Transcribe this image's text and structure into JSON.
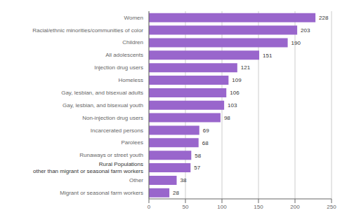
{
  "chart_data": {
    "type": "bar",
    "orientation": "horizontal",
    "categories": [
      "Migrant or seasonal farm workers",
      "Other",
      null,
      "Runaways or street youth",
      "Parolees",
      "Incarcerated persons",
      "Non-injection drug users",
      "Gay, lesbian, and bisexual youth",
      "Gay, lesbian, and bisexual adults",
      "Homeless",
      "Injection drug users",
      "All adolescents",
      "Children",
      "Racial/ethnic minorities/communities of color",
      "Women"
    ],
    "values": [
      28,
      38,
      57,
      58,
      68,
      69,
      98,
      103,
      106,
      109,
      121,
      151,
      190,
      203,
      228
    ],
    "color": "#9966cc",
    "xlim": [
      0,
      250
    ],
    "xticks": [
      0,
      50,
      100,
      150,
      200,
      250
    ],
    "grid": true,
    "data_labels": true,
    "annotations": [
      "Rural Populations\nother than migrant or seasonal farm workers"
    ]
  }
}
